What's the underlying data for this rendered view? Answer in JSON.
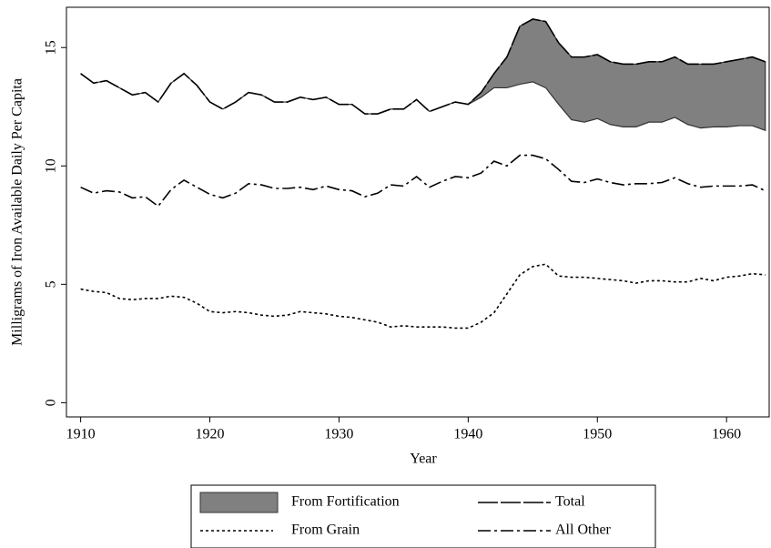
{
  "chart_data": {
    "type": "line",
    "ylabel": "Milligrams of Iron Available Daily Per Capita",
    "xlabel": "Year",
    "x": [
      1910,
      1911,
      1912,
      1913,
      1914,
      1915,
      1916,
      1917,
      1918,
      1919,
      1920,
      1921,
      1922,
      1923,
      1924,
      1925,
      1926,
      1927,
      1928,
      1929,
      1930,
      1931,
      1932,
      1933,
      1934,
      1935,
      1936,
      1937,
      1938,
      1939,
      1940,
      1941,
      1942,
      1943,
      1944,
      1945,
      1946,
      1947,
      1948,
      1949,
      1950,
      1951,
      1952,
      1953,
      1954,
      1955,
      1956,
      1957,
      1958,
      1959,
      1960,
      1961,
      1962,
      1963
    ],
    "series": [
      {
        "name": "From Fortification",
        "style": "area-below",
        "color": "#808080",
        "on": "Total",
        "values": [
          0,
          0,
          0,
          0,
          0,
          0,
          0,
          0,
          0,
          0,
          0,
          0,
          0,
          0,
          0,
          0,
          0,
          0,
          0,
          0,
          0,
          0,
          0,
          0,
          0,
          0,
          0,
          0,
          0,
          0,
          0,
          0.2,
          0.6,
          1.3,
          2.45,
          2.65,
          2.8,
          2.6,
          2.65,
          2.75,
          2.7,
          2.65,
          2.65,
          2.65,
          2.55,
          2.55,
          2.55,
          2.55,
          2.7,
          2.65,
          2.75,
          2.8,
          2.9,
          2.9
        ]
      },
      {
        "name": "Total",
        "style": "long-dash",
        "color": "#000000",
        "values": [
          13.9,
          13.5,
          13.6,
          13.3,
          13.0,
          13.1,
          12.7,
          13.5,
          13.9,
          13.4,
          12.7,
          12.4,
          12.7,
          13.1,
          13.0,
          12.7,
          12.7,
          12.9,
          12.8,
          12.9,
          12.6,
          12.6,
          12.2,
          12.2,
          12.4,
          12.4,
          12.8,
          12.3,
          12.5,
          12.7,
          12.6,
          13.1,
          13.9,
          14.6,
          15.9,
          16.2,
          16.1,
          15.2,
          14.6,
          14.6,
          14.7,
          14.4,
          14.3,
          14.3,
          14.4,
          14.4,
          14.6,
          14.3,
          14.3,
          14.3,
          14.4,
          14.5,
          14.6,
          14.4
        ]
      },
      {
        "name": "From Grain",
        "style": "dot",
        "color": "#000000",
        "values": [
          4.8,
          4.7,
          4.65,
          4.4,
          4.35,
          4.4,
          4.4,
          4.5,
          4.45,
          4.2,
          3.85,
          3.8,
          3.85,
          3.8,
          3.7,
          3.65,
          3.7,
          3.85,
          3.8,
          3.75,
          3.65,
          3.6,
          3.5,
          3.4,
          3.2,
          3.25,
          3.2,
          3.2,
          3.2,
          3.15,
          3.15,
          3.4,
          3.8,
          4.6,
          5.4,
          5.75,
          5.85,
          5.35,
          5.3,
          5.3,
          5.25,
          5.2,
          5.15,
          5.05,
          5.15,
          5.15,
          5.1,
          5.1,
          5.25,
          5.15,
          5.3,
          5.35,
          5.45,
          5.4
        ]
      },
      {
        "name": "All Other",
        "style": "dash-dot",
        "color": "#000000",
        "values": [
          9.1,
          8.85,
          8.95,
          8.9,
          8.65,
          8.7,
          8.3,
          9.0,
          9.4,
          9.1,
          8.8,
          8.65,
          8.85,
          9.25,
          9.2,
          9.05,
          9.05,
          9.1,
          9.0,
          9.15,
          9.0,
          8.95,
          8.7,
          8.85,
          9.2,
          9.15,
          9.55,
          9.1,
          9.35,
          9.55,
          9.5,
          9.7,
          10.2,
          10.0,
          10.45,
          10.45,
          10.3,
          9.85,
          9.35,
          9.3,
          9.45,
          9.3,
          9.2,
          9.25,
          9.25,
          9.3,
          9.5,
          9.25,
          9.1,
          9.15,
          9.15,
          9.15,
          9.2,
          8.95
        ]
      }
    ],
    "xlim": [
      1908.9,
      1963.3
    ],
    "xticks": [
      1910,
      1920,
      1930,
      1940,
      1950,
      1960
    ],
    "ylim": [
      -0.6,
      16.7
    ],
    "yticks": [
      0,
      5,
      10,
      15
    ],
    "grid": false,
    "legend": "bottom"
  }
}
